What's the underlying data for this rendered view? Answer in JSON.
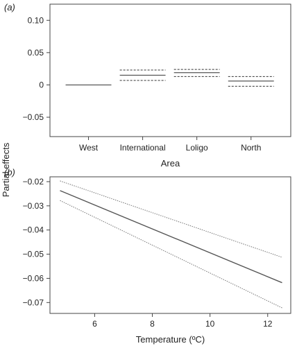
{
  "shared_ylabel": "Partial effects",
  "chart_data": [
    {
      "type": "line",
      "panel_label": "(a)",
      "xlabel": "Area",
      "ylabel": "",
      "categories": [
        "West",
        "International",
        "Loligo",
        "North"
      ],
      "yticks": [
        -0.05,
        0,
        0.05,
        0.1
      ],
      "ytick_labels": [
        "−0.05",
        "0",
        "0.05",
        "0.10"
      ],
      "ylim": [
        -0.08,
        0.125
      ],
      "grid": false,
      "estimate": [
        0.0,
        0.015,
        0.019,
        0.006
      ],
      "upper": [
        null,
        0.023,
        0.024,
        0.013
      ],
      "lower": [
        null,
        0.007,
        0.013,
        -0.002
      ],
      "colors": {
        "estimate": "#555555",
        "bounds": "#333333"
      }
    },
    {
      "type": "line",
      "panel_label": "(b)",
      "xlabel": "Temperature (ºC)",
      "ylabel": "",
      "xticks": [
        6,
        8,
        10,
        12
      ],
      "xtick_labels": [
        "6",
        "8",
        "10",
        "12"
      ],
      "yticks": [
        -0.07,
        -0.06,
        -0.05,
        -0.04,
        -0.03,
        -0.02
      ],
      "ytick_labels": [
        "−0.07",
        "−0.06",
        "−0.05",
        "−0.04",
        "−0.03",
        "−0.02"
      ],
      "xlim": [
        4.45,
        12.8
      ],
      "ylim": [
        -0.0745,
        -0.018
      ],
      "grid": false,
      "series": [
        {
          "x": [
            4.8,
            12.5
          ],
          "y": [
            -0.0237,
            -0.0618
          ]
        },
        {
          "x": [
            4.8,
            12.5
          ],
          "y": [
            -0.0197,
            -0.0513
          ]
        },
        {
          "x": [
            4.8,
            12.5
          ],
          "y": [
            -0.0278,
            -0.0722
          ]
        }
      ],
      "colors": {
        "estimate": "#555555",
        "bounds": "#777777"
      }
    }
  ]
}
